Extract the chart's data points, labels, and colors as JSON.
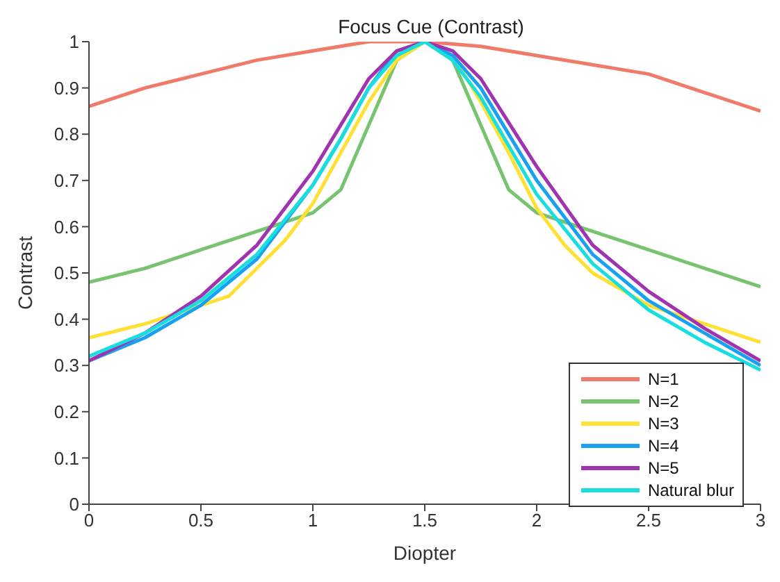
{
  "chart_data": {
    "type": "line",
    "title": "Focus Cue (Contrast)",
    "xlabel": "Diopter",
    "ylabel": "Contrast",
    "xlim": [
      0,
      3
    ],
    "xticks": [
      0,
      0.5,
      1,
      1.5,
      2,
      2.5,
      3
    ],
    "ylim": [
      0,
      1
    ],
    "yticks": [
      0,
      0.1,
      0.2,
      0.3,
      0.4,
      0.5,
      0.6,
      0.7,
      0.8,
      0.9,
      1
    ],
    "grid": false,
    "legend": "bottom right",
    "marker": "none",
    "line_style": "solid",
    "series": [
      {
        "name": "N=1",
        "color": "#f07b6b",
        "x": [
          0,
          0.25,
          0.5,
          0.75,
          1,
          1.25,
          1.5,
          1.75,
          2,
          2.25,
          2.5,
          2.75,
          3
        ],
        "values": [
          0.86,
          0.9,
          0.93,
          0.96,
          0.98,
          1,
          1,
          0.99,
          0.97,
          0.95,
          0.93,
          0.89,
          0.85
        ]
      },
      {
        "name": "N=2",
        "color": "#77c36f",
        "x": [
          0,
          0.25,
          0.5,
          0.75,
          1,
          1.125,
          1.375,
          1.5,
          1.625,
          1.875,
          2,
          2.25,
          2.5,
          2.75,
          3
        ],
        "values": [
          0.48,
          0.51,
          0.55,
          0.59,
          0.63,
          0.68,
          0.96,
          1,
          0.96,
          0.68,
          0.63,
          0.59,
          0.55,
          0.51,
          0.47
        ]
      },
      {
        "name": "N=3",
        "color": "#ffe033",
        "x": [
          0,
          0.25,
          0.5,
          0.625,
          0.75,
          0.875,
          1,
          1.125,
          1.25,
          1.375,
          1.5,
          1.625,
          1.75,
          1.875,
          2,
          2.125,
          2.25,
          2.5,
          2.75,
          3
        ],
        "values": [
          0.36,
          0.39,
          0.43,
          0.45,
          0.51,
          0.57,
          0.65,
          0.76,
          0.87,
          0.96,
          1,
          0.97,
          0.87,
          0.76,
          0.64,
          0.56,
          0.5,
          0.43,
          0.39,
          0.35
        ]
      },
      {
        "name": "N=4",
        "color": "#1aa0f0",
        "x": [
          0,
          0.25,
          0.5,
          0.75,
          1,
          1.125,
          1.25,
          1.375,
          1.5,
          1.625,
          1.75,
          2,
          2.25,
          2.5,
          2.75,
          3
        ],
        "values": [
          0.31,
          0.36,
          0.43,
          0.53,
          0.69,
          0.79,
          0.9,
          0.98,
          1,
          0.97,
          0.9,
          0.7,
          0.54,
          0.44,
          0.37,
          0.3
        ]
      },
      {
        "name": "N=5",
        "color": "#a033b0",
        "x": [
          0,
          0.25,
          0.5,
          0.75,
          1,
          1.125,
          1.25,
          1.375,
          1.5,
          1.625,
          1.75,
          2,
          2.25,
          2.5,
          2.75,
          3
        ],
        "values": [
          0.31,
          0.37,
          0.45,
          0.56,
          0.72,
          0.82,
          0.92,
          0.98,
          1,
          0.98,
          0.92,
          0.73,
          0.56,
          0.46,
          0.38,
          0.31
        ]
      },
      {
        "name": "Natural blur",
        "color": "#19dede",
        "x": [
          0,
          0.25,
          0.5,
          0.75,
          1,
          1.125,
          1.25,
          1.375,
          1.5,
          1.625,
          1.75,
          2,
          2.25,
          2.5,
          2.75,
          3
        ],
        "values": [
          0.32,
          0.37,
          0.44,
          0.54,
          0.69,
          0.79,
          0.9,
          0.97,
          1,
          0.96,
          0.88,
          0.67,
          0.52,
          0.42,
          0.35,
          0.29
        ]
      }
    ]
  }
}
